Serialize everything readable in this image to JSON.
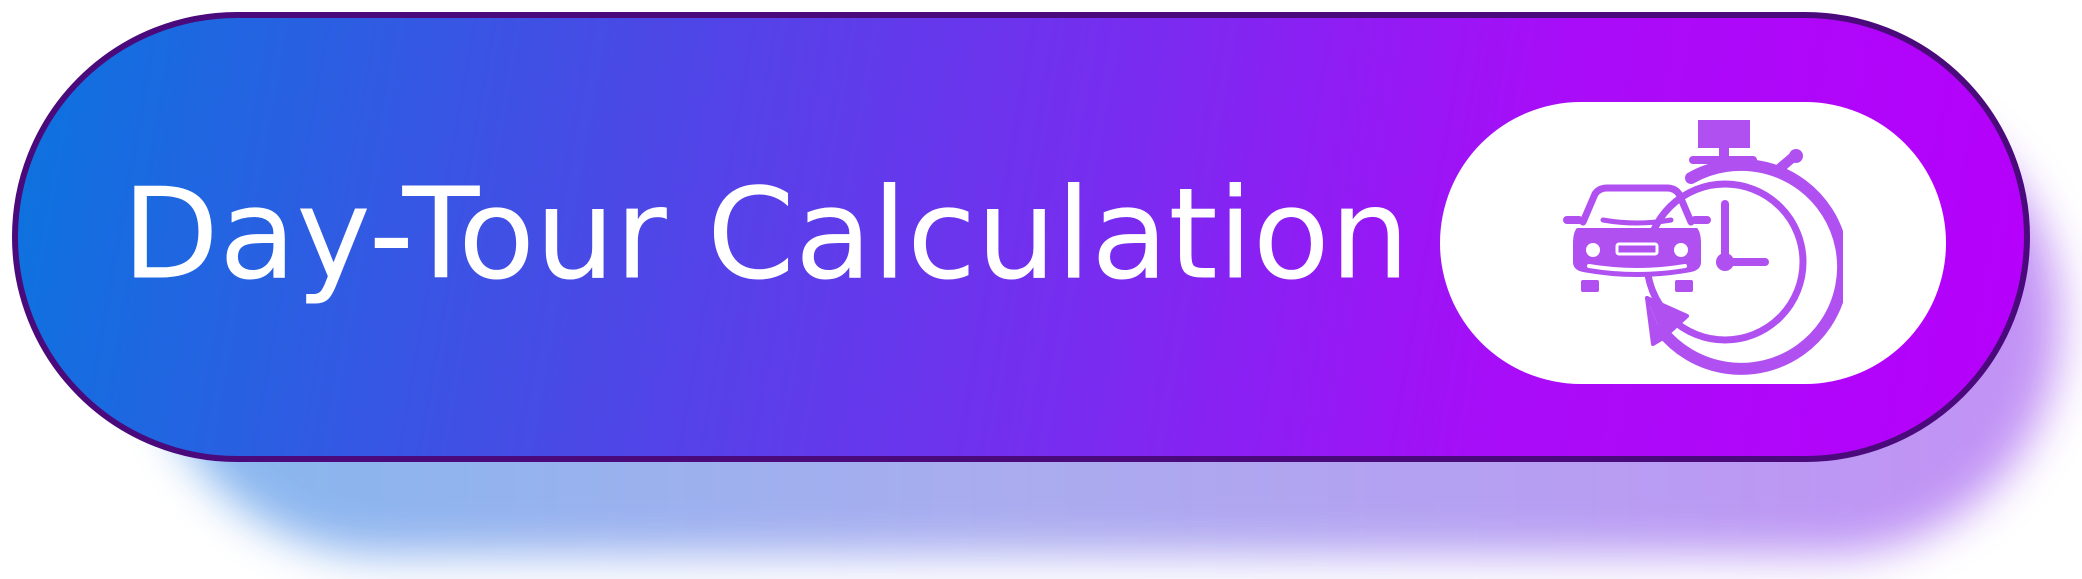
{
  "button": {
    "label": "Day-Tour Calculation",
    "icon": "car-stopwatch-icon"
  },
  "colors": {
    "gradient_start": "#0b74de",
    "gradient_end": "#b600fb",
    "border": "#4a0a7c",
    "icon_purple": "#b050f0",
    "text": "#ffffff"
  }
}
